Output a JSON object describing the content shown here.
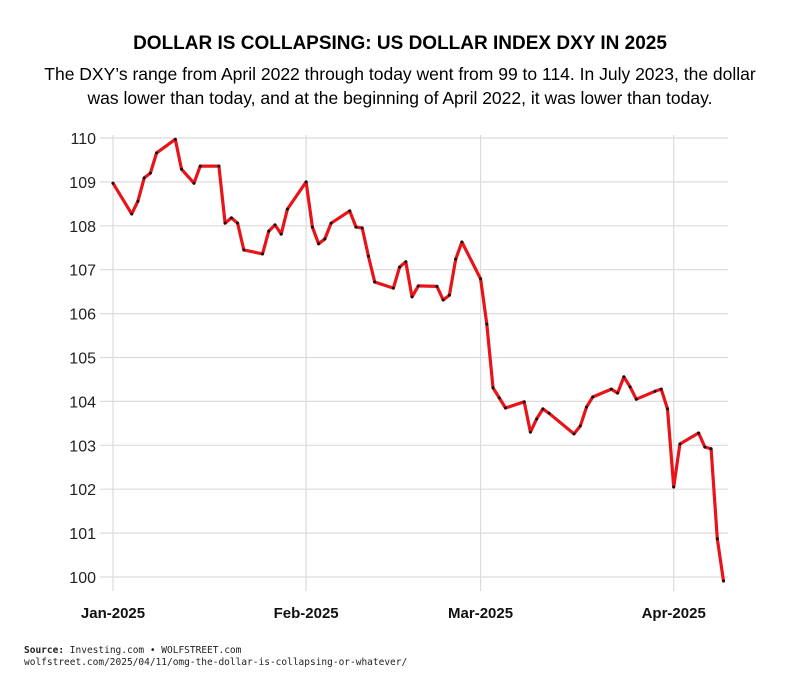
{
  "chart_data": {
    "type": "line",
    "title": "DOLLAR IS COLLAPSING: US DOLLAR INDEX DXY IN 2025",
    "subtitle": "The DXY’s range from April 2022 through today went from 99 to 114. In July 2023, the dollar was lower than today, and at the beginning of April 2022, it was lower than today.",
    "xlabel": "",
    "ylabel": "",
    "xlim": [
      "2025-01-01",
      "2025-04-10"
    ],
    "ylim": [
      100,
      110
    ],
    "yticks": [
      100,
      101,
      102,
      103,
      104,
      105,
      106,
      107,
      108,
      109,
      110
    ],
    "xticks": [
      {
        "date": "2025-01-01",
        "label": "Jan-2025"
      },
      {
        "date": "2025-02-01",
        "label": "Feb-2025"
      },
      {
        "date": "2025-03-01",
        "label": "Mar-2025"
      },
      {
        "date": "2025-04-01",
        "label": "Apr-2025"
      }
    ],
    "grid": true,
    "line_color": "#e8141a",
    "marker_color": "#111111",
    "points": [
      [
        "2025-01-01",
        108.97
      ],
      [
        "2025-01-04",
        108.27
      ],
      [
        "2025-01-05",
        108.56
      ],
      [
        "2025-01-06",
        109.09
      ],
      [
        "2025-01-07",
        109.2
      ],
      [
        "2025-01-08",
        109.66
      ],
      [
        "2025-01-11",
        109.97
      ],
      [
        "2025-01-12",
        109.29
      ],
      [
        "2025-01-14",
        108.97
      ],
      [
        "2025-01-15",
        109.36
      ],
      [
        "2025-01-18",
        109.36
      ],
      [
        "2025-01-19",
        108.06
      ],
      [
        "2025-01-20",
        108.18
      ],
      [
        "2025-01-21",
        108.06
      ],
      [
        "2025-01-22",
        107.45
      ],
      [
        "2025-01-25",
        107.36
      ],
      [
        "2025-01-26",
        107.88
      ],
      [
        "2025-01-27",
        108.02
      ],
      [
        "2025-01-28",
        107.81
      ],
      [
        "2025-01-29",
        108.38
      ],
      [
        "2025-02-01",
        109.0
      ],
      [
        "2025-02-02",
        107.97
      ],
      [
        "2025-02-03",
        107.59
      ],
      [
        "2025-02-04",
        107.7
      ],
      [
        "2025-02-05",
        108.06
      ],
      [
        "2025-02-08",
        108.34
      ],
      [
        "2025-02-09",
        107.97
      ],
      [
        "2025-02-10",
        107.95
      ],
      [
        "2025-02-11",
        107.31
      ],
      [
        "2025-02-12",
        106.72
      ],
      [
        "2025-02-15",
        106.58
      ],
      [
        "2025-02-16",
        107.06
      ],
      [
        "2025-02-17",
        107.18
      ],
      [
        "2025-02-18",
        106.38
      ],
      [
        "2025-02-19",
        106.63
      ],
      [
        "2025-02-22",
        106.62
      ],
      [
        "2025-02-23",
        106.31
      ],
      [
        "2025-02-24",
        106.42
      ],
      [
        "2025-02-25",
        107.24
      ],
      [
        "2025-02-26",
        107.63
      ],
      [
        "2025-03-01",
        106.79
      ],
      [
        "2025-03-02",
        105.76
      ],
      [
        "2025-03-03",
        104.31
      ],
      [
        "2025-03-04",
        104.08
      ],
      [
        "2025-03-05",
        103.85
      ],
      [
        "2025-03-08",
        103.99
      ],
      [
        "2025-03-09",
        103.3
      ],
      [
        "2025-03-10",
        103.6
      ],
      [
        "2025-03-11",
        103.83
      ],
      [
        "2025-03-12",
        103.73
      ],
      [
        "2025-03-16",
        103.26
      ],
      [
        "2025-03-17",
        103.44
      ],
      [
        "2025-03-18",
        103.87
      ],
      [
        "2025-03-19",
        104.1
      ],
      [
        "2025-03-22",
        104.28
      ],
      [
        "2025-03-23",
        104.19
      ],
      [
        "2025-03-24",
        104.56
      ],
      [
        "2025-03-25",
        104.33
      ],
      [
        "2025-03-26",
        104.05
      ],
      [
        "2025-03-29",
        104.23
      ],
      [
        "2025-03-30",
        104.28
      ],
      [
        "2025-03-31",
        103.83
      ],
      [
        "2025-04-01",
        102.05
      ],
      [
        "2025-04-02",
        103.03
      ],
      [
        "2025-04-05",
        103.28
      ],
      [
        "2025-04-06",
        102.96
      ],
      [
        "2025-04-07",
        102.92
      ],
      [
        "2025-04-08",
        100.87
      ],
      [
        "2025-04-09",
        99.91
      ]
    ]
  },
  "source": {
    "label": "Source:",
    "text": "Investing.com • WOLFSTREET.com",
    "url": "wolfstreet.com/2025/04/11/omg-the-dollar-is-collapsing-or-whatever/"
  }
}
